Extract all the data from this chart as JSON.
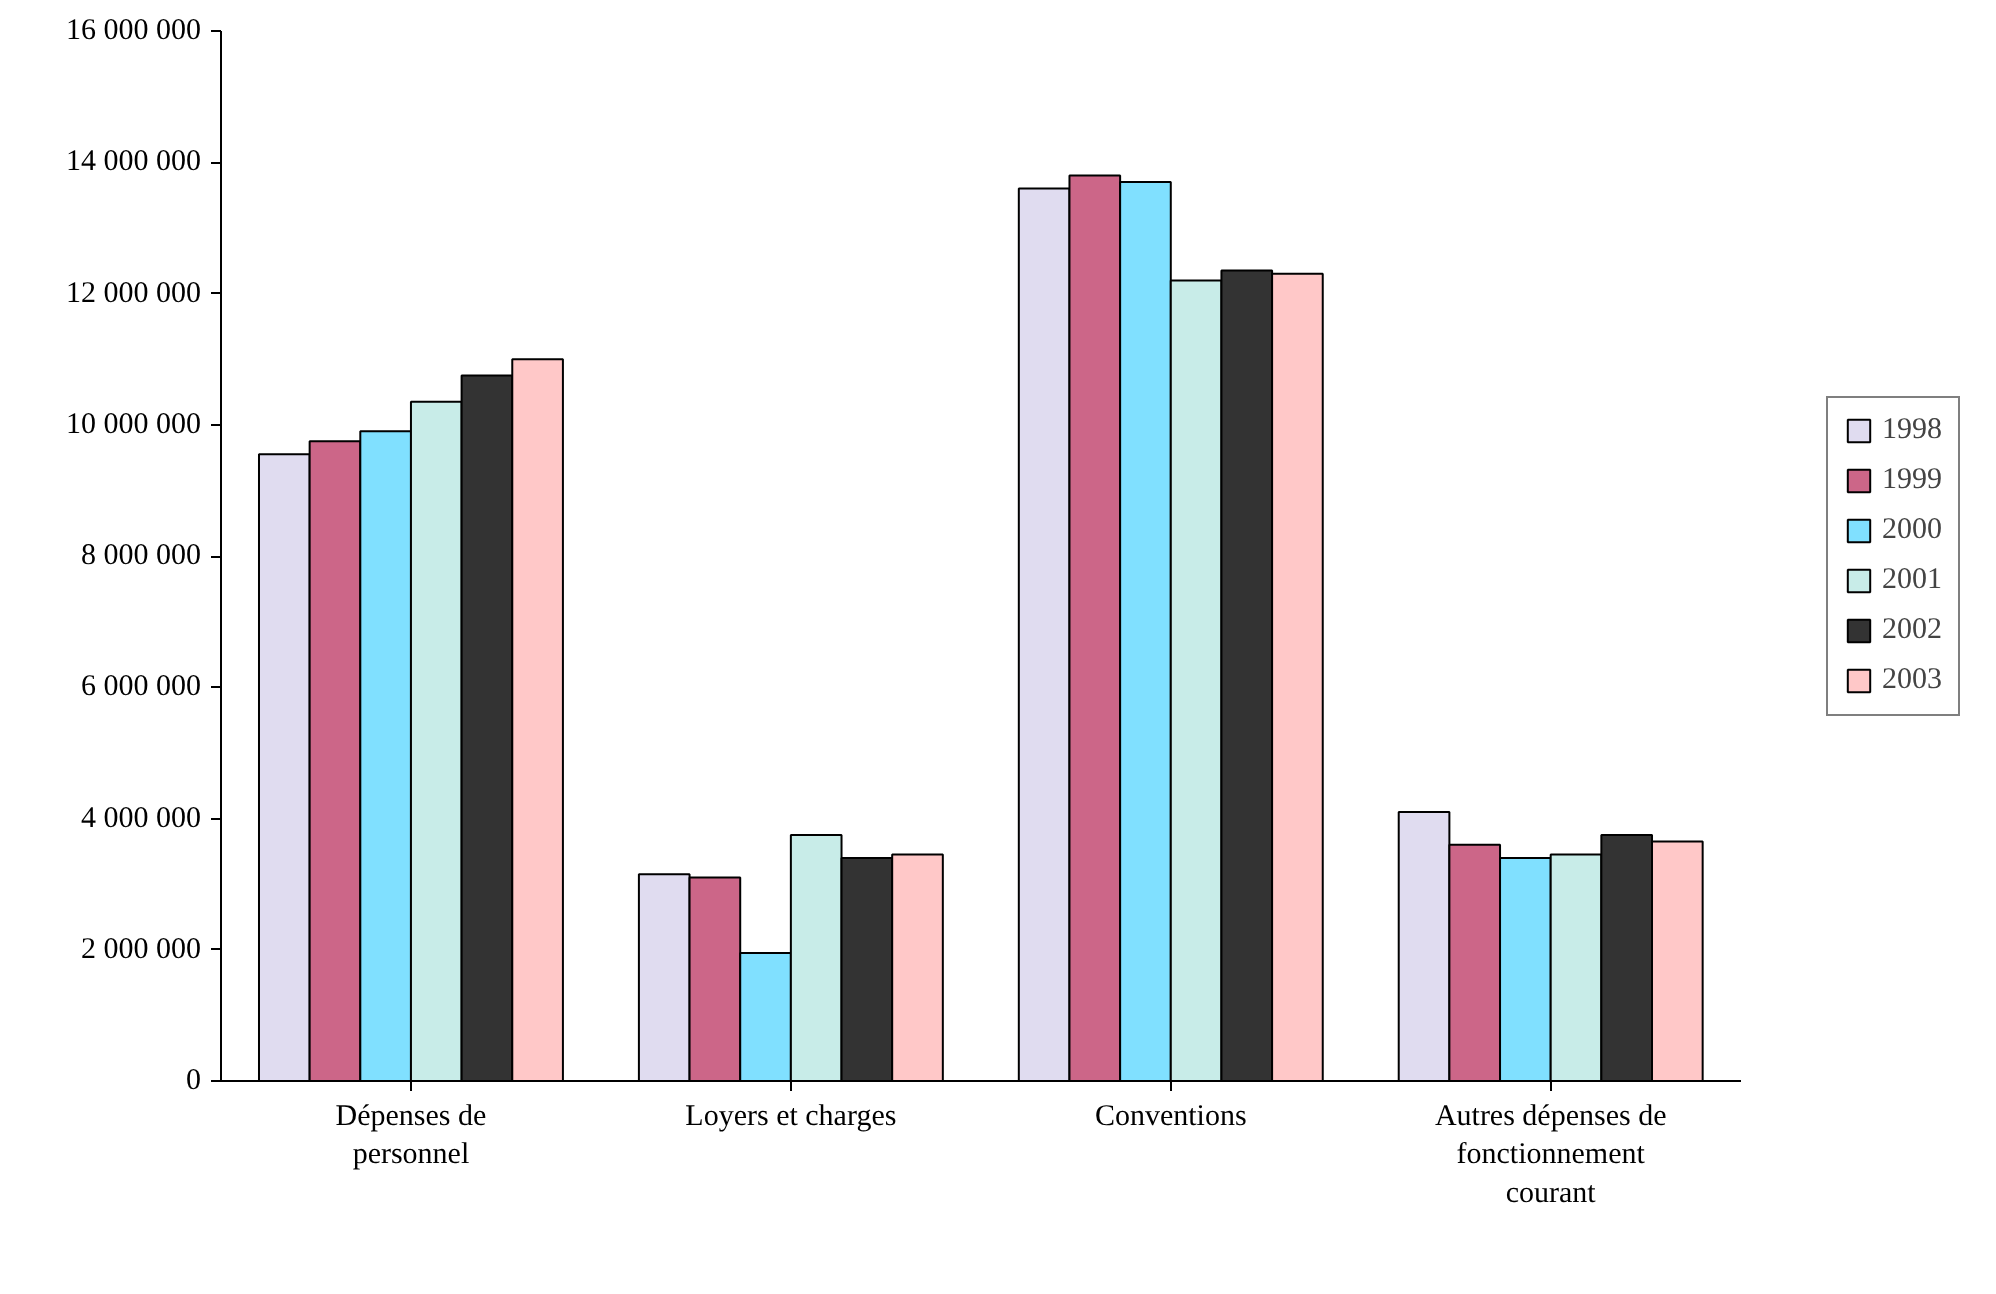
{
  "chart_data": {
    "type": "bar",
    "categories": [
      "Dépenses de personnel",
      "Loyers et charges",
      "Conventions",
      "Autres dépenses de fonctionnement courant"
    ],
    "series": [
      {
        "name": "1998",
        "color": "#e0dcf0",
        "values": [
          9550000,
          3150000,
          13600000,
          4100000
        ]
      },
      {
        "name": "1999",
        "color": "#cc6688",
        "values": [
          9750000,
          3100000,
          13800000,
          3600000
        ]
      },
      {
        "name": "2000",
        "color": "#80e0ff",
        "values": [
          9900000,
          1950000,
          13700000,
          3400000
        ]
      },
      {
        "name": "2001",
        "color": "#c8ece8",
        "values": [
          10350000,
          3750000,
          12200000,
          3450000
        ]
      },
      {
        "name": "2002",
        "color": "#333333",
        "values": [
          10750000,
          3400000,
          12350000,
          3750000
        ]
      },
      {
        "name": "2003",
        "color": "#ffc8c8",
        "values": [
          11000000,
          3450000,
          12300000,
          3650000
        ]
      }
    ],
    "ylim": [
      0,
      16000000
    ],
    "yticks": [
      0,
      {
        "value": 2000000,
        "label": "2 000 000"
      },
      {
        "value": 4000000,
        "label": "4 000 000"
      },
      {
        "value": 6000000,
        "label": "6 000 000"
      },
      {
        "value": 8000000,
        "label": "8 000 000"
      },
      {
        "value": 10000000,
        "label": "10 000 000"
      },
      {
        "value": 12000000,
        "label": "12 000 000"
      },
      {
        "value": 14000000,
        "label": "14 000 000"
      },
      {
        "value": 16000000,
        "label": "16 000 000"
      }
    ],
    "grid": false,
    "legend": "right"
  }
}
